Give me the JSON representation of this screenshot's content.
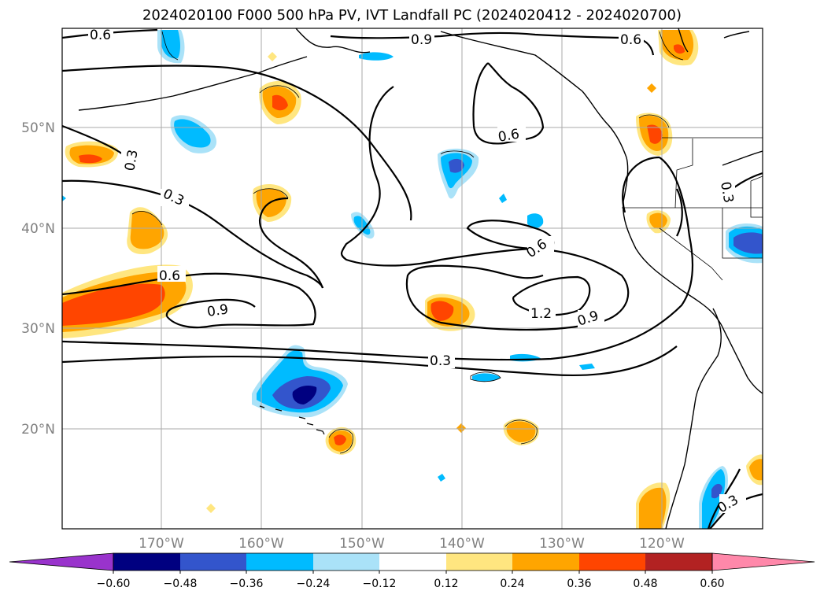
{
  "title": "2024020100 F000 500 hPa PV, IVT Landfall PC (2024020412 - 2024020700)",
  "map": {
    "lon_labels": [
      "170°W",
      "160°W",
      "150°W",
      "140°W",
      "130°W",
      "120°W"
    ],
    "lat_labels": [
      "50°N",
      "40°N",
      "30°N",
      "20°N"
    ],
    "contour_labels": [
      "0.6",
      "0.9",
      "0.6",
      "0.3",
      "0.3",
      "0.6",
      "0.6",
      "0.3",
      "0.6",
      "0.9",
      "1.2",
      "0.9",
      "0.3",
      "0.3"
    ]
  },
  "colorbar": {
    "tick_labels": [
      "−0.60",
      "−0.48",
      "−0.36",
      "−0.24",
      "−0.12",
      "0.12",
      "0.24",
      "0.36",
      "0.48",
      "0.60"
    ],
    "colors": [
      "#9933cc",
      "#000080",
      "#3355cc",
      "#00bbff",
      "#aae2f8",
      "#ffffff",
      "#ffe680",
      "#ffa500",
      "#ff4500",
      "#b22222",
      "#ff88aa"
    ]
  }
}
